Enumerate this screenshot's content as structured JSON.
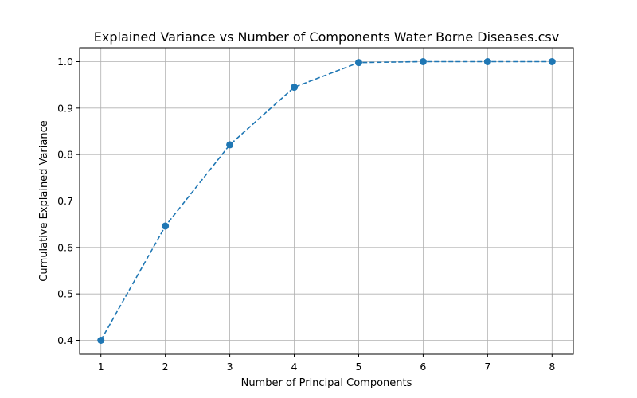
{
  "chart_data": {
    "type": "line",
    "title": "Explained Variance vs Number of Components Water Borne Diseases.csv",
    "xlabel": "Number of Principal Components",
    "ylabel": "Cumulative Explained Variance",
    "x": [
      1,
      2,
      3,
      4,
      5,
      6,
      7,
      8
    ],
    "x_tick_labels": [
      "1",
      "2",
      "3",
      "4",
      "5",
      "6",
      "7",
      "8"
    ],
    "y_ticks": [
      0.4,
      0.5,
      0.6,
      0.7,
      0.8,
      0.9,
      1.0
    ],
    "y_tick_labels": [
      "0.4",
      "0.5",
      "0.6",
      "0.7",
      "0.8",
      "0.9",
      "1.0"
    ],
    "xlim": [
      0.67,
      8.33
    ],
    "ylim": [
      0.37,
      1.03
    ],
    "series": [
      {
        "values": [
          0.4,
          0.646,
          0.821,
          0.945,
          0.998,
          1.0,
          1.0,
          1.0
        ],
        "color": "#1f77b4",
        "line_style": "dashed",
        "marker": "circle"
      }
    ],
    "grid": true,
    "legend": "none"
  }
}
